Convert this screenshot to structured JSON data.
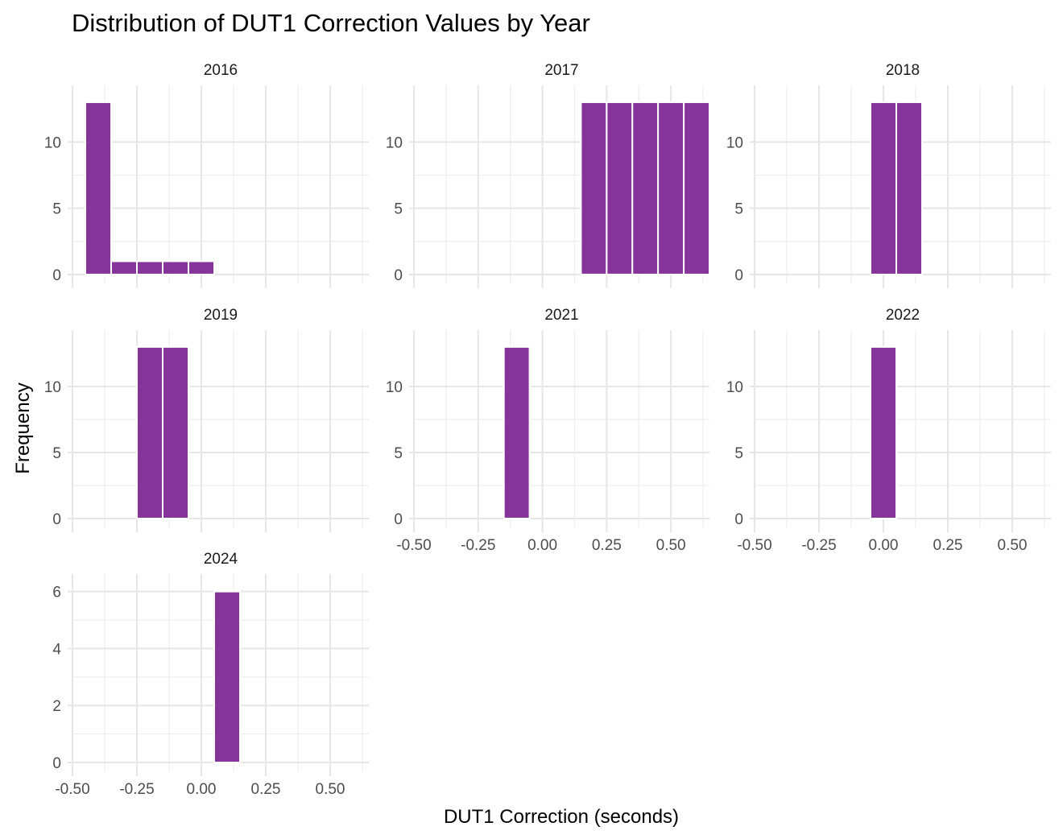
{
  "chart_data": {
    "type": "bar",
    "title": "Distribution of DUT1 Correction Values by Year",
    "xlabel": "DUT1 Correction (seconds)",
    "ylabel": "Frequency",
    "bar_color": "#85349A",
    "bin_width": 0.1,
    "xlim": [
      -0.5,
      0.65
    ],
    "x_ticks": [
      -0.5,
      -0.25,
      0.0,
      0.25,
      0.5
    ],
    "x_tick_labels": [
      "-0.50",
      "-0.25",
      "0.00",
      "0.25",
      "0.50"
    ],
    "grid": true,
    "facets": [
      {
        "label": "2016",
        "ylim": [
          0,
          13.6
        ],
        "y_ticks": [
          0,
          5,
          10
        ],
        "bins": [
          {
            "center": -0.4,
            "count": 13
          },
          {
            "center": -0.3,
            "count": 1
          },
          {
            "center": -0.2,
            "count": 1
          },
          {
            "center": -0.1,
            "count": 1
          },
          {
            "center": 0.0,
            "count": 1
          }
        ]
      },
      {
        "label": "2017",
        "ylim": [
          0,
          13.6
        ],
        "y_ticks": [
          0,
          5,
          10
        ],
        "bins": [
          {
            "center": 0.2,
            "count": 13
          },
          {
            "center": 0.3,
            "count": 13
          },
          {
            "center": 0.4,
            "count": 13
          },
          {
            "center": 0.5,
            "count": 13
          },
          {
            "center": 0.6,
            "count": 13
          }
        ]
      },
      {
        "label": "2018",
        "ylim": [
          0,
          13.6
        ],
        "y_ticks": [
          0,
          5,
          10
        ],
        "bins": [
          {
            "center": 0.0,
            "count": 13
          },
          {
            "center": 0.1,
            "count": 13
          }
        ]
      },
      {
        "label": "2019",
        "ylim": [
          0,
          13.6
        ],
        "y_ticks": [
          0,
          5,
          10
        ],
        "bins": [
          {
            "center": -0.2,
            "count": 13
          },
          {
            "center": -0.1,
            "count": 13
          }
        ]
      },
      {
        "label": "2021",
        "ylim": [
          0,
          13.6
        ],
        "y_ticks": [
          0,
          5,
          10
        ],
        "bins": [
          {
            "center": -0.1,
            "count": 13
          }
        ]
      },
      {
        "label": "2022",
        "ylim": [
          0,
          13.6
        ],
        "y_ticks": [
          0,
          5,
          10
        ],
        "bins": [
          {
            "center": 0.0,
            "count": 13
          }
        ]
      },
      {
        "label": "2024",
        "ylim": [
          0,
          6.3
        ],
        "y_ticks": [
          0,
          2,
          4,
          6
        ],
        "bins": [
          {
            "center": 0.1,
            "count": 6
          }
        ]
      }
    ]
  }
}
